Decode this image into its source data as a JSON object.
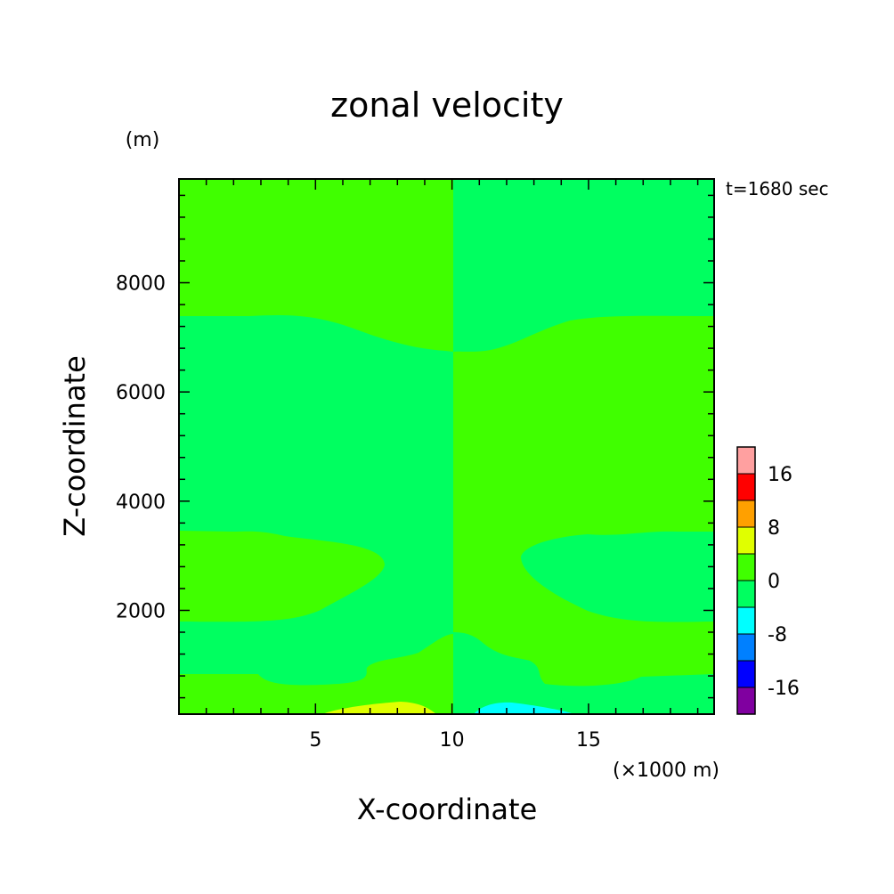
{
  "chart_data": {
    "type": "heatmap",
    "title": "zonal velocity",
    "xlabel": "X-coordinate",
    "ylabel": "Z-coordinate",
    "x_unit": "(×1000 m)",
    "y_unit": "(m)",
    "time_label": "t=1680 sec",
    "xlim": [
      0,
      19.6
    ],
    "ylim": [
      100,
      9900
    ],
    "x_ticks": [
      5,
      10,
      15
    ],
    "y_ticks": [
      2000,
      4000,
      6000,
      8000
    ],
    "colorbar": {
      "levels": [
        -20,
        -16,
        -12,
        -8,
        -4,
        0,
        4,
        8,
        12,
        16,
        20
      ],
      "tick_labels": [
        "-16",
        "-8",
        "0",
        "8",
        "16"
      ],
      "tick_values": [
        -16,
        -8,
        0,
        8,
        16
      ],
      "colors": [
        "#8000a0",
        "#0000ff",
        "#0080ff",
        "#00ffff",
        "#00ff60",
        "#40ff00",
        "#e0ff00",
        "#ffa000",
        "#ff0000",
        "#ffa0a0"
      ]
    },
    "regions": [
      {
        "level": "0 to 4",
        "color": "#40ff00",
        "x": [
          0,
          10.2
        ],
        "z": [
          7380,
          9900
        ]
      },
      {
        "level": "-4 to 0",
        "color": "#00ff60",
        "x": [
          10.2,
          19.6
        ],
        "z": [
          7380,
          9900
        ]
      },
      {
        "level": "-4 to 0",
        "color": "#00ff60",
        "x": [
          0,
          10.2
        ],
        "z": [
          3400,
          7380
        ]
      },
      {
        "level": "0 to 4",
        "color": "#40ff00",
        "x": [
          10.2,
          19.6
        ],
        "z": [
          3400,
          7380
        ]
      },
      {
        "level": "0 to 4",
        "color": "#40ff00",
        "x": [
          0,
          7.5
        ],
        "z": [
          1750,
          3400
        ]
      },
      {
        "level": "-4 to 0",
        "color": "#00ff60",
        "x": [
          12.5,
          19.6
        ],
        "z": [
          1750,
          3400
        ]
      },
      {
        "level": "4 to 8",
        "color": "#e0ff00",
        "x": [
          5.5,
          9.5
        ],
        "z": [
          100,
          300
        ]
      },
      {
        "level": "-8 to -4",
        "color": "#00ffff",
        "x": [
          11,
          14.5
        ],
        "z": [
          100,
          300
        ]
      }
    ]
  }
}
